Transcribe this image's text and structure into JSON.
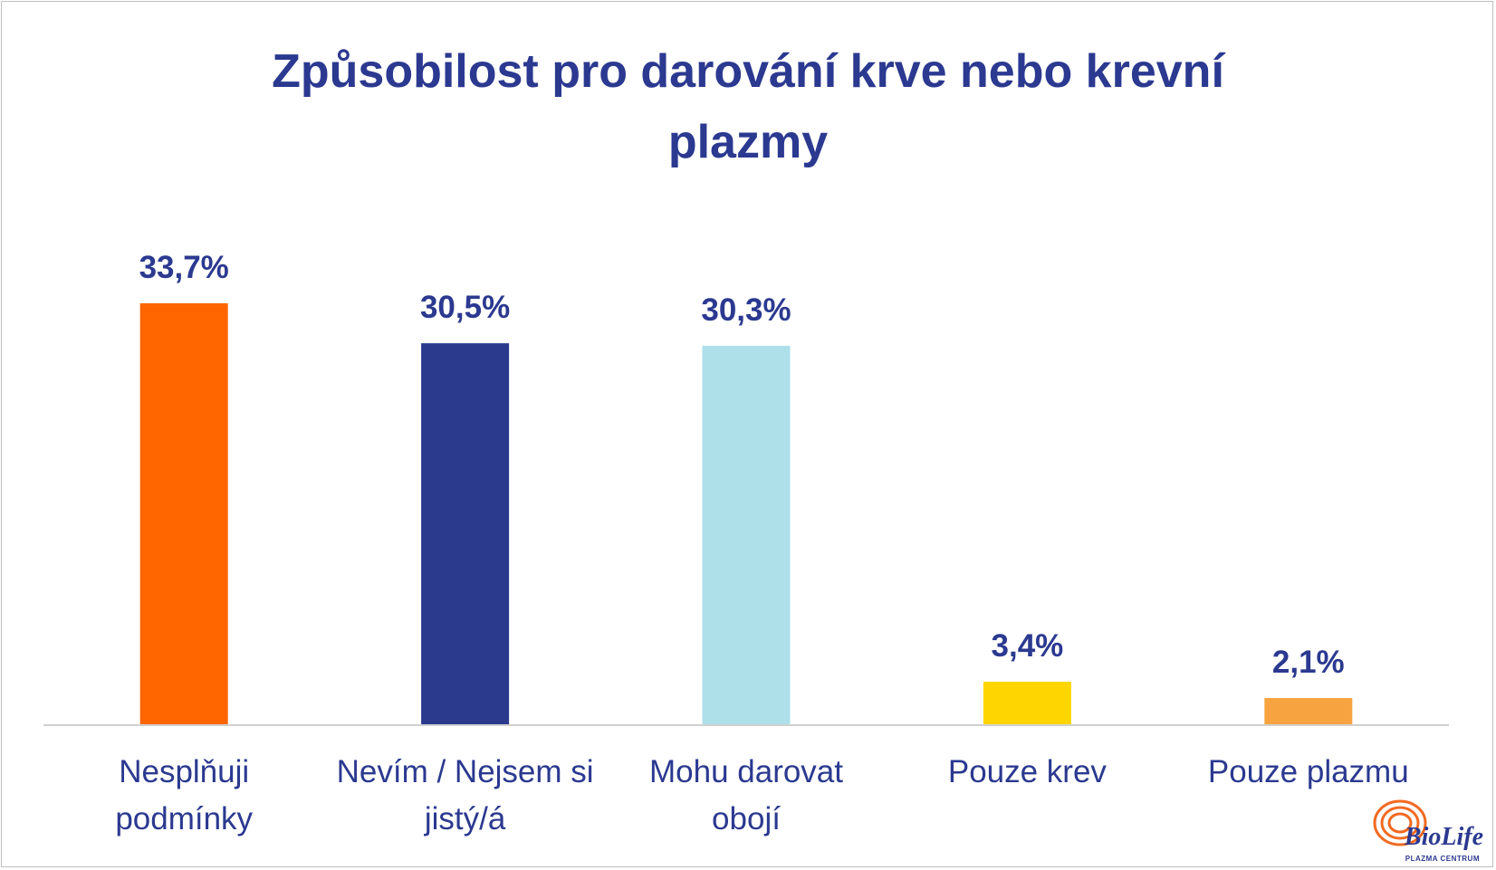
{
  "chart_data": {
    "type": "bar",
    "title_lines": [
      "Způsobilost pro darování krve nebo krevní",
      "plazmy"
    ],
    "categories": [
      [
        "Nesplňuji",
        "podmínky"
      ],
      [
        "Nevím / Nejsem si",
        "jistý/á"
      ],
      [
        "Mohu darovat",
        "obojí"
      ],
      [
        "Pouze krev"
      ],
      [
        "Pouze plazmu"
      ]
    ],
    "values": [
      33.7,
      30.5,
      30.3,
      3.4,
      2.1
    ],
    "value_labels": [
      "33,7%",
      "30,5%",
      "30,3%",
      "3,4%",
      "2,1%"
    ],
    "colors": [
      "#ff6600",
      "#2b3a8c",
      "#aee0ea",
      "#ffd500",
      "#f7a440"
    ],
    "label_color": "#2b3990",
    "ylim": [
      0,
      33.7
    ],
    "grid": false,
    "legend": "none"
  },
  "logo": {
    "name": "BioLife",
    "subtitle": "PLAZMA CENTRUM"
  }
}
